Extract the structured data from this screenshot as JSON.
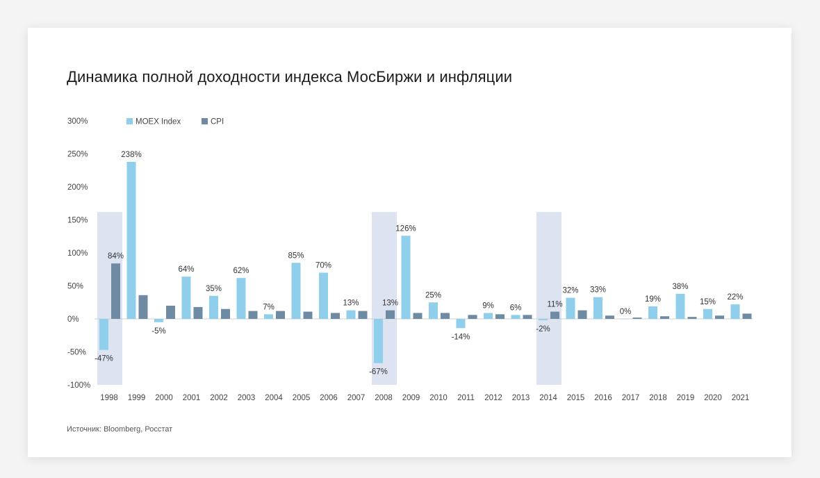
{
  "title": "Динамика полной доходности индекса МосБиржи и инфляции",
  "source": "Источник: Bloomberg, Росстат",
  "colors": {
    "moex": "#8fcfec",
    "cpi": "#6f8aa3",
    "crisis_band": "#dde3f0"
  },
  "chart_data": {
    "type": "bar",
    "title": "Динамика полной доходности индекса МосБиржи и инфляции",
    "xlabel": "",
    "ylabel": "",
    "ylim": [
      -100,
      300
    ],
    "y_ticks": [
      "300%",
      "250%",
      "200%",
      "150%",
      "100%",
      "50%",
      "0%",
      "-50%",
      "-100%"
    ],
    "y_tick_values": [
      300,
      250,
      200,
      150,
      100,
      50,
      0,
      -50,
      -100
    ],
    "legend_placement": "top-left",
    "grid": false,
    "categories": [
      "1998",
      "1999",
      "2000",
      "2001",
      "2002",
      "2003",
      "2004",
      "2005",
      "2006",
      "2007",
      "2008",
      "2009",
      "2010",
      "2011",
      "2012",
      "2013",
      "2014",
      "2015",
      "2016",
      "2017",
      "2018",
      "2019",
      "2020",
      "2021"
    ],
    "highlighted_years": [
      "1998",
      "2008",
      "2014"
    ],
    "highlight_range": [
      -100,
      162
    ],
    "series": [
      {
        "name": "MOEX Index",
        "values": [
          -47,
          238,
          -5,
          64,
          35,
          62,
          7,
          85,
          70,
          13,
          -67,
          126,
          25,
          -14,
          9,
          6,
          -2,
          32,
          33,
          0,
          19,
          38,
          15,
          22
        ],
        "labels": [
          "-47%",
          "238%",
          "-5%",
          "64%",
          "35%",
          "62%",
          "7%",
          "85%",
          "70%",
          "13%",
          "-67%",
          "126%",
          "25%",
          "-14%",
          "9%",
          "6%",
          "-2%",
          "32%",
          "33%",
          "0%",
          "19%",
          "38%",
          "15%",
          "22%"
        ]
      },
      {
        "name": "CPI",
        "values": [
          84,
          36,
          20,
          18,
          15,
          12,
          12,
          11,
          9,
          12,
          13,
          9,
          9,
          6,
          7,
          6,
          11,
          13,
          5,
          2,
          4,
          3,
          5,
          8
        ],
        "labels": [
          "84%",
          null,
          null,
          null,
          null,
          null,
          null,
          null,
          null,
          null,
          "13%",
          null,
          null,
          null,
          null,
          null,
          "11%",
          null,
          null,
          null,
          null,
          null,
          null,
          null
        ]
      }
    ]
  }
}
